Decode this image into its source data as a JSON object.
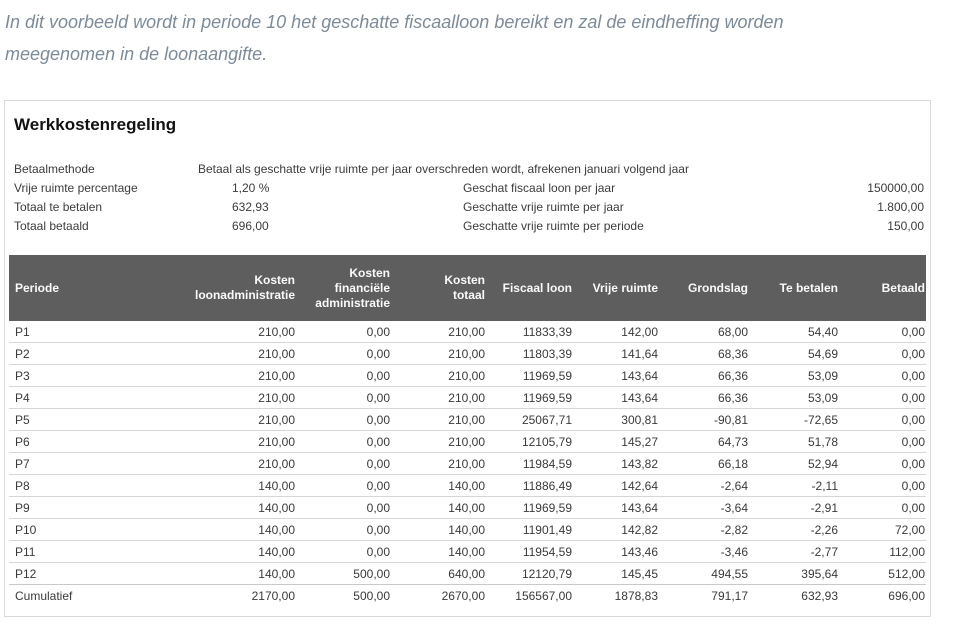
{
  "intro": {
    "text": "In dit voorbeeld wordt in periode 10 het geschatte fiscaalloon bereikt en zal de eindheffing worden meegenomen in de loonaangifte."
  },
  "panel": {
    "title": "Werkkostenregeling",
    "info_left": [
      {
        "label": "Betaalmethode",
        "value": "Betaal als geschatte vrije ruimte per jaar overschreden wordt, afrekenen januari volgend jaar"
      },
      {
        "label": "Vrije ruimte percentage",
        "value": "1,20 %"
      },
      {
        "label": "Totaal te betalen",
        "value": "632,93"
      },
      {
        "label": "Totaal betaald",
        "value": "696,00"
      }
    ],
    "info_right": [
      {
        "label": "Geschat fiscaal loon per jaar",
        "value": "150000,00"
      },
      {
        "label": "Geschatte vrije ruimte per jaar",
        "value": "1.800,00"
      },
      {
        "label": "Geschatte vrije ruimte per periode",
        "value": "150,00"
      }
    ],
    "table": {
      "columns": [
        "Periode",
        "Kosten\nloonadministratie",
        "Kosten\nfinanciële\nadministratie",
        "Kosten\ntotaal",
        "Fiscaal loon",
        "Vrije ruimte",
        "Grondslag",
        "Te betalen",
        "Betaald"
      ],
      "rows": [
        [
          "P1",
          "210,00",
          "0,00",
          "210,00",
          "11833,39",
          "142,00",
          "68,00",
          "54,40",
          "0,00"
        ],
        [
          "P2",
          "210,00",
          "0,00",
          "210,00",
          "11803,39",
          "141,64",
          "68,36",
          "54,69",
          "0,00"
        ],
        [
          "P3",
          "210,00",
          "0,00",
          "210,00",
          "11969,59",
          "143,64",
          "66,36",
          "53,09",
          "0,00"
        ],
        [
          "P4",
          "210,00",
          "0,00",
          "210,00",
          "11969,59",
          "143,64",
          "66,36",
          "53,09",
          "0,00"
        ],
        [
          "P5",
          "210,00",
          "0,00",
          "210,00",
          "25067,71",
          "300,81",
          "-90,81",
          "-72,65",
          "0,00"
        ],
        [
          "P6",
          "210,00",
          "0,00",
          "210,00",
          "12105,79",
          "145,27",
          "64,73",
          "51,78",
          "0,00"
        ],
        [
          "P7",
          "210,00",
          "0,00",
          "210,00",
          "11984,59",
          "143,82",
          "66,18",
          "52,94",
          "0,00"
        ],
        [
          "P8",
          "140,00",
          "0,00",
          "140,00",
          "11886,49",
          "142,64",
          "-2,64",
          "-2,11",
          "0,00"
        ],
        [
          "P9",
          "140,00",
          "0,00",
          "140,00",
          "11969,59",
          "143,64",
          "-3,64",
          "-2,91",
          "0,00"
        ],
        [
          "P10",
          "140,00",
          "0,00",
          "140,00",
          "11901,49",
          "142,82",
          "-2,82",
          "-2,26",
          "72,00"
        ],
        [
          "P11",
          "140,00",
          "0,00",
          "140,00",
          "11954,59",
          "143,46",
          "-3,46",
          "-2,77",
          "112,00"
        ],
        [
          "P12",
          "140,00",
          "500,00",
          "640,00",
          "12120,79",
          "145,45",
          "494,55",
          "395,64",
          "512,00"
        ]
      ],
      "footer": [
        "Cumulatief",
        "2170,00",
        "500,00",
        "2670,00",
        "156567,00",
        "1878,83",
        "791,17",
        "632,93",
        "696,00"
      ]
    }
  },
  "colors": {
    "table_header_bg": "#5f5e5e",
    "table_header_text": "#fafafa",
    "intro_text": "#7d8b99",
    "body_text": "#3c3c3c",
    "panel_border": "#d9d9d9",
    "row_divider": "#d6d6d6"
  }
}
